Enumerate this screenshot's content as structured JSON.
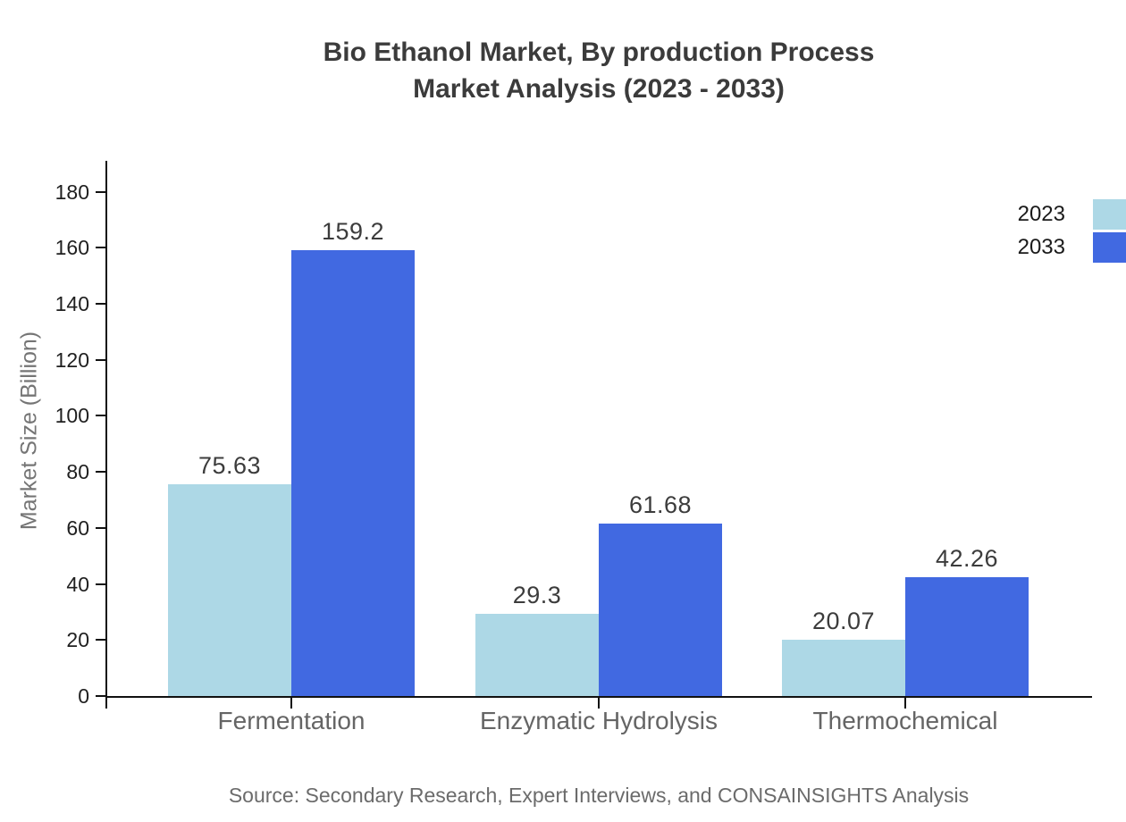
{
  "title": {
    "line1": "Bio Ethanol Market, By production Process",
    "line2": "Market Analysis (2023 - 2033)"
  },
  "source": "Source: Secondary Research, Expert Interviews, and CONSAINSIGHTS Analysis",
  "colors": {
    "series_2023": "#ADD8E6",
    "series_2033": "#4169E1",
    "axis": "#111111",
    "title_text": "#3B3B3B",
    "tick_text": "#1F1F1F",
    "category_text": "#656565",
    "value_text": "#3C3C3C",
    "ylabel_text": "#757575",
    "source_text": "#6B6B6B",
    "background": "#FFFFFF"
  },
  "chart_data": {
    "type": "bar",
    "title": "Bio Ethanol Market, By production Process Market Analysis (2023 - 2033)",
    "categories": [
      "Fermentation",
      "Enzymatic Hydrolysis",
      "Thermochemical"
    ],
    "series": [
      {
        "name": "2023",
        "color": "#ADD8E6",
        "values": [
          75.63,
          29.3,
          20.07
        ]
      },
      {
        "name": "2033",
        "color": "#4169E1",
        "values": [
          159.2,
          61.68,
          42.26
        ]
      }
    ],
    "xlabel": "",
    "ylabel": "Market Size (Billion)",
    "ylim": [
      0,
      190
    ],
    "yticks": [
      0,
      20,
      40,
      60,
      80,
      100,
      120,
      140,
      160,
      180
    ],
    "grid": false,
    "legend_position": "top-right",
    "bar_value_labels": true
  }
}
